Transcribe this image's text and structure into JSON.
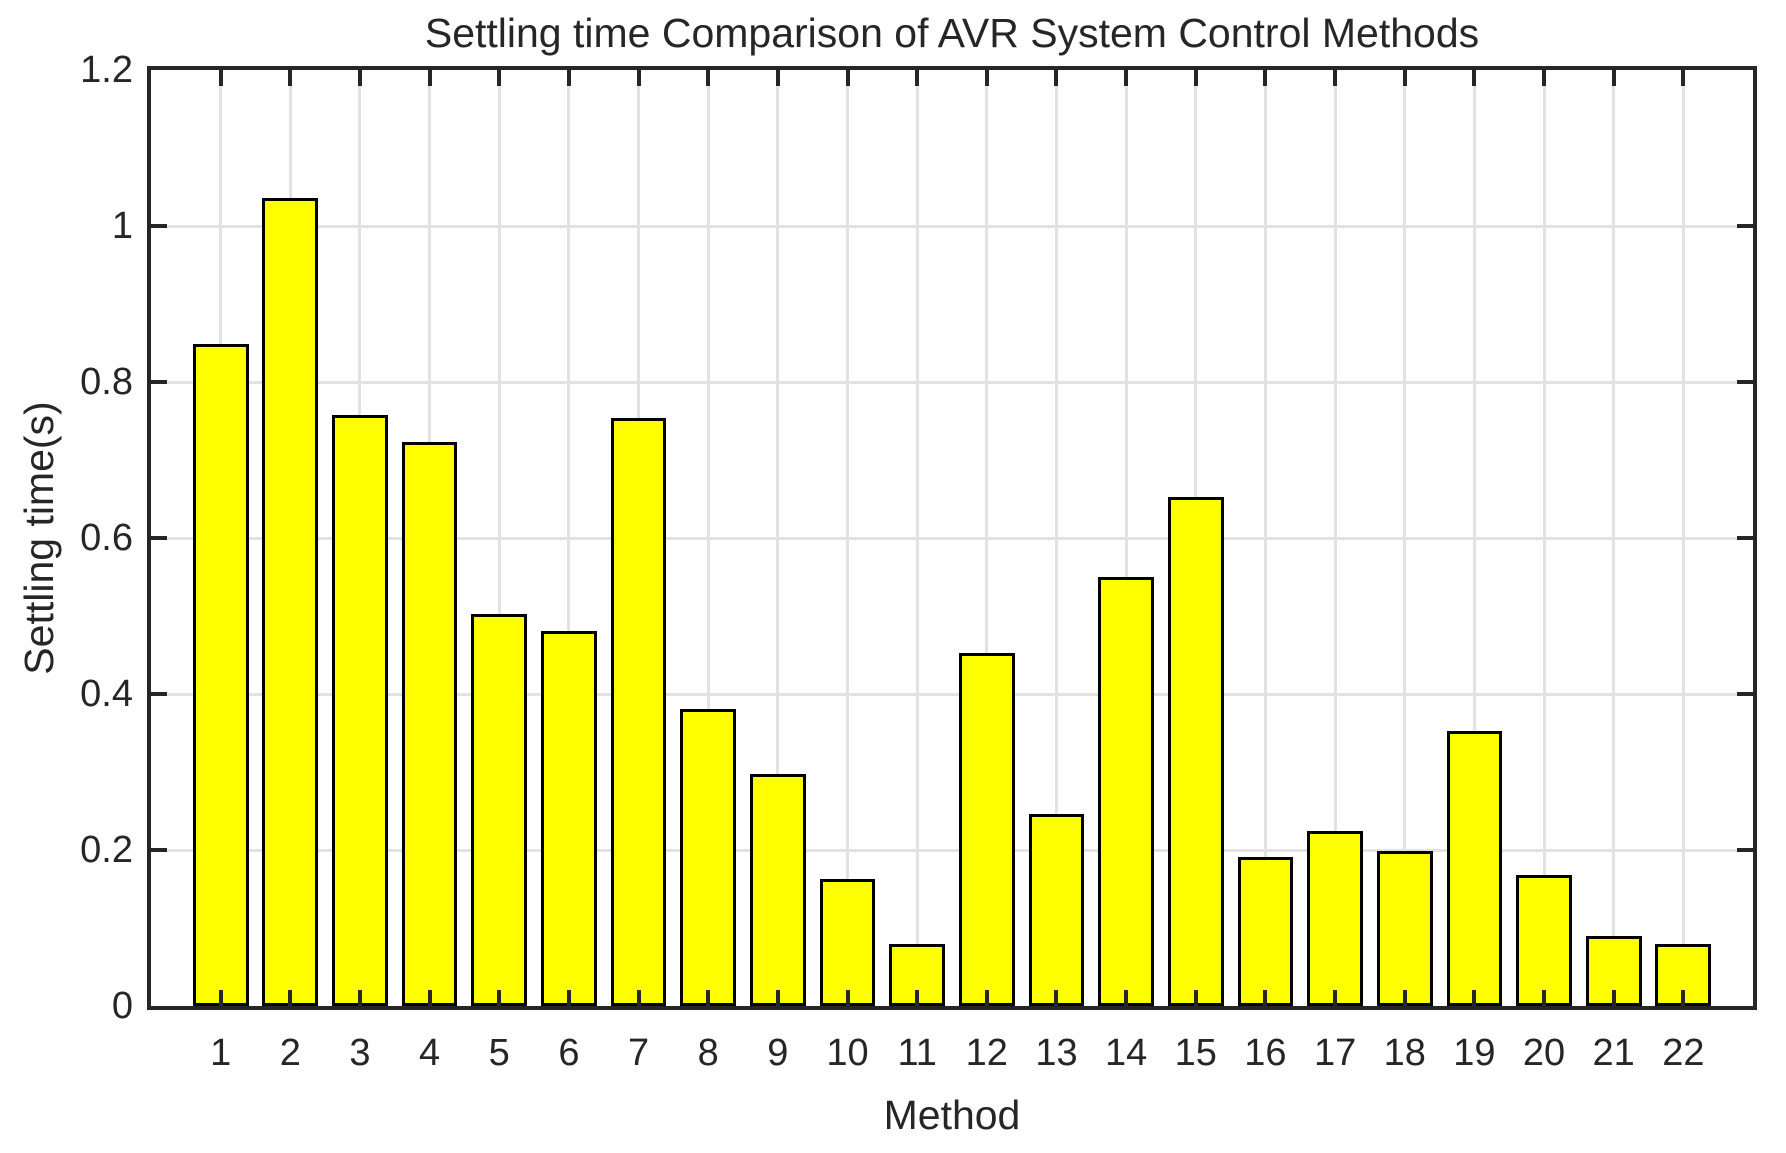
{
  "figure": {
    "title": "Settling time Comparison of AVR System Control Methods",
    "xlabel": "Method",
    "ylabel": "Settling time(s)"
  },
  "chart_data": {
    "type": "bar",
    "title": "Settling time Comparison of AVR System Control Methods",
    "xlabel": "Method",
    "ylabel": "Settling time(s)",
    "categories": [
      1,
      2,
      3,
      4,
      5,
      6,
      7,
      8,
      9,
      10,
      11,
      12,
      13,
      14,
      15,
      16,
      17,
      18,
      19,
      20,
      21,
      22
    ],
    "values": [
      0.849,
      1.036,
      0.758,
      0.723,
      0.502,
      0.481,
      0.754,
      0.381,
      0.297,
      0.163,
      0.08,
      0.452,
      0.246,
      0.55,
      0.652,
      0.191,
      0.225,
      0.199,
      0.352,
      0.168,
      0.09,
      0.08
    ],
    "xlim": [
      0,
      23
    ],
    "ylim": [
      0,
      1.2
    ],
    "yticks": [
      0,
      0.2,
      0.4,
      0.6,
      0.8,
      1,
      1.2
    ],
    "ytick_labels": [
      "0",
      "0.2",
      "0.4",
      "0.6",
      "0.8",
      "1",
      "1.2"
    ],
    "grid": true,
    "legend": null,
    "bar_width_fraction": 0.8,
    "bar_color": "#ffff00",
    "bar_edge_color": "#000000",
    "grid_color": "#e2e2e2",
    "axis_color": "#262626",
    "text_color": "#262626",
    "background_color": "#ffffff"
  }
}
